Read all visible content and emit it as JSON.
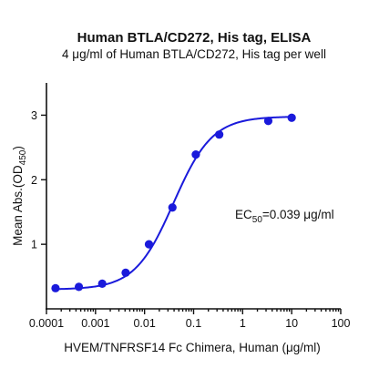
{
  "chart_data": {
    "type": "scatter",
    "title": "Human BTLA/CD272, His tag, ELISA",
    "subtitle": "4 μg/ml of Human BTLA/CD272, His tag per well",
    "xlabel": "HVEM/TNFRSF14 Fc Chimera, Human (μg/ml)",
    "ylabel": {
      "prefix": "Mean Abs.(OD",
      "sub": "450",
      "suffix": ")"
    },
    "x_scale": "log",
    "xlim": [
      0.0001,
      100
    ],
    "ylim": [
      0,
      3.5
    ],
    "x_ticks": [
      {
        "value": 0.0001,
        "label": "0.0001"
      },
      {
        "value": 0.001,
        "label": "0.001"
      },
      {
        "value": 0.01,
        "label": "0.01"
      },
      {
        "value": 0.1,
        "label": "0.1"
      },
      {
        "value": 1,
        "label": "1"
      },
      {
        "value": 10,
        "label": "10"
      },
      {
        "value": 100,
        "label": "100"
      }
    ],
    "y_ticks": [
      {
        "value": 1,
        "label": "1"
      },
      {
        "value": 2,
        "label": "2"
      },
      {
        "value": 3,
        "label": "3"
      }
    ],
    "series": [
      {
        "color": "#1a1adb",
        "x": [
          0.000153,
          0.000458,
          0.00137,
          0.00412,
          0.0123,
          0.037,
          0.111,
          0.333,
          3.33,
          10
        ],
        "y": [
          0.32,
          0.34,
          0.39,
          0.56,
          1.0,
          1.57,
          2.39,
          2.7,
          2.91,
          2.96
        ]
      }
    ],
    "fit": {
      "bottom": 0.3,
      "top": 2.98,
      "ec50": 0.039,
      "hill": 1.1
    },
    "annotation": {
      "prefix": "EC",
      "sub": "50",
      "suffix": "=0.039 μg/ml"
    },
    "grid": false,
    "legend": "none"
  }
}
